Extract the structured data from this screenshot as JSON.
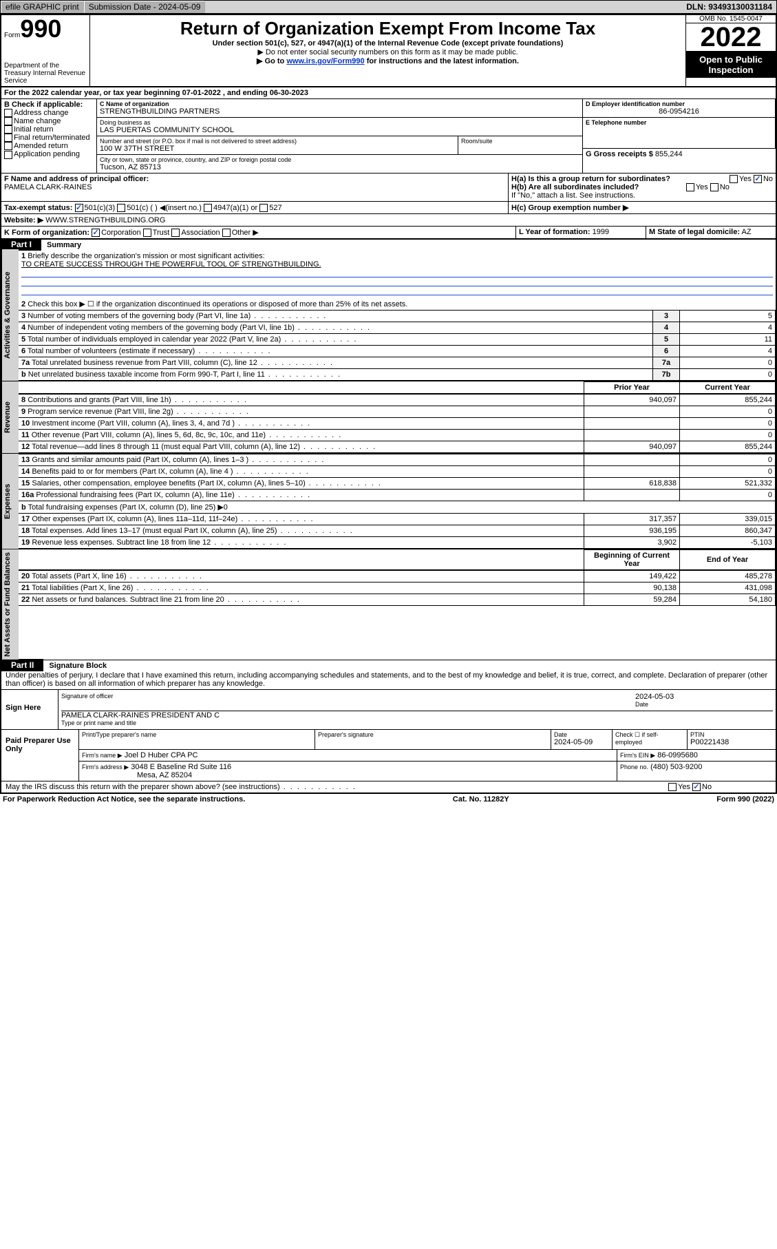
{
  "topbar": {
    "efile": "efile GRAPHIC print",
    "submission": "Submission Date - 2024-05-09",
    "dln": "DLN: 93493130031184"
  },
  "header": {
    "form_prefix": "Form",
    "form_number": "990",
    "dept": "Department of the Treasury Internal Revenue Service",
    "title": "Return of Organization Exempt From Income Tax",
    "subtitle": "Under section 501(c), 527, or 4947(a)(1) of the Internal Revenue Code (except private foundations)",
    "note1": "▶ Do not enter social security numbers on this form as it may be made public.",
    "note2_pre": "▶ Go to ",
    "note2_link": "www.irs.gov/Form990",
    "note2_post": " for instructions and the latest information.",
    "omb": "OMB No. 1545-0047",
    "year": "2022",
    "open": "Open to Public Inspection"
  },
  "A": {
    "text": "For the 2022 calendar year, or tax year beginning 07-01-2022   , and ending 06-30-2023"
  },
  "B": {
    "label": "B Check if applicable:",
    "items": [
      "Address change",
      "Name change",
      "Initial return",
      "Final return/terminated",
      "Amended return",
      "Application pending"
    ]
  },
  "C": {
    "name_label": "C Name of organization",
    "name": "STRENGTHBUILDING PARTNERS",
    "dba_label": "Doing business as",
    "dba": "LAS PUERTAS COMMUNITY SCHOOL",
    "street_label": "Number and street (or P.O. box if mail is not delivered to street address)",
    "room_label": "Room/suite",
    "street": "100 W 37TH STREET",
    "city_label": "City or town, state or province, country, and ZIP or foreign postal code",
    "city": "Tucson, AZ  85713"
  },
  "D": {
    "label": "D Employer identification number",
    "value": "86-0954216"
  },
  "E": {
    "label": "E Telephone number",
    "value": ""
  },
  "G": {
    "label": "G Gross receipts $",
    "value": "855,244"
  },
  "F": {
    "label": "F Name and address of principal officer:",
    "value": "PAMELA CLARK-RAINES"
  },
  "H": {
    "a": "H(a)  Is this a group return for subordinates?",
    "a_yes": "Yes",
    "a_no": "No",
    "b": "H(b)  Are all subordinates included?",
    "b_yes": "Yes",
    "b_no": "No",
    "b_note": "If \"No,\" attach a list. See instructions.",
    "c": "H(c)  Group exemption number ▶"
  },
  "I": {
    "label": "Tax-exempt status:",
    "opts": [
      "501(c)(3)",
      "501(c) (  ) ◀(insert no.)",
      "4947(a)(1) or",
      "527"
    ]
  },
  "J": {
    "label": "Website: ▶",
    "value": "WWW.STRENGTHBUILDING.ORG"
  },
  "K": {
    "label": "K Form of organization:",
    "opts": [
      "Corporation",
      "Trust",
      "Association",
      "Other ▶"
    ]
  },
  "L": {
    "label": "L Year of formation:",
    "value": "1999"
  },
  "M": {
    "label": "M State of legal domicile:",
    "value": "AZ"
  },
  "partI": {
    "label": "Part I",
    "title": "Summary"
  },
  "summary": {
    "q1": "Briefly describe the organization's mission or most significant activities:",
    "q1_ans": "TO CREATE SUCCESS THROUGH THE POWERFUL TOOL OF STRENGTHBUILDING.",
    "q2": "Check this box ▶ ☐  if the organization discontinued its operations or disposed of more than 25% of its net assets.",
    "rows_gov": [
      {
        "n": "3",
        "t": "Number of voting members of the governing body (Part VI, line 1a)",
        "k": "3",
        "v": "5"
      },
      {
        "n": "4",
        "t": "Number of independent voting members of the governing body (Part VI, line 1b)",
        "k": "4",
        "v": "4"
      },
      {
        "n": "5",
        "t": "Total number of individuals employed in calendar year 2022 (Part V, line 2a)",
        "k": "5",
        "v": "11"
      },
      {
        "n": "6",
        "t": "Total number of volunteers (estimate if necessary)",
        "k": "6",
        "v": "4"
      },
      {
        "n": "7a",
        "t": "Total unrelated business revenue from Part VIII, column (C), line 12",
        "k": "7a",
        "v": "0"
      },
      {
        "n": "b",
        "t": "Net unrelated business taxable income from Form 990-T, Part I, line 11",
        "k": "7b",
        "v": "0"
      }
    ],
    "prior_label": "Prior Year",
    "current_label": "Current Year",
    "rows_rev": [
      {
        "n": "8",
        "t": "Contributions and grants (Part VIII, line 1h)",
        "p": "940,097",
        "c": "855,244"
      },
      {
        "n": "9",
        "t": "Program service revenue (Part VIII, line 2g)",
        "p": "",
        "c": "0"
      },
      {
        "n": "10",
        "t": "Investment income (Part VIII, column (A), lines 3, 4, and 7d )",
        "p": "",
        "c": "0"
      },
      {
        "n": "11",
        "t": "Other revenue (Part VIII, column (A), lines 5, 6d, 8c, 9c, 10c, and 11e)",
        "p": "",
        "c": "0"
      },
      {
        "n": "12",
        "t": "Total revenue—add lines 8 through 11 (must equal Part VIII, column (A), line 12)",
        "p": "940,097",
        "c": "855,244"
      }
    ],
    "rows_exp": [
      {
        "n": "13",
        "t": "Grants and similar amounts paid (Part IX, column (A), lines 1–3 )",
        "p": "",
        "c": "0"
      },
      {
        "n": "14",
        "t": "Benefits paid to or for members (Part IX, column (A), line 4 )",
        "p": "",
        "c": "0"
      },
      {
        "n": "15",
        "t": "Salaries, other compensation, employee benefits (Part IX, column (A), lines 5–10)",
        "p": "618,838",
        "c": "521,332"
      },
      {
        "n": "16a",
        "t": "Professional fundraising fees (Part IX, column (A), line 11e)",
        "p": "",
        "c": "0"
      },
      {
        "n": "b",
        "t": "Total fundraising expenses (Part IX, column (D), line 25) ▶0",
        "p": null,
        "c": null
      },
      {
        "n": "17",
        "t": "Other expenses (Part IX, column (A), lines 11a–11d, 11f–24e)",
        "p": "317,357",
        "c": "339,015"
      },
      {
        "n": "18",
        "t": "Total expenses. Add lines 13–17 (must equal Part IX, column (A), line 25)",
        "p": "936,195",
        "c": "860,347"
      },
      {
        "n": "19",
        "t": "Revenue less expenses. Subtract line 18 from line 12",
        "p": "3,902",
        "c": "-5,103"
      }
    ],
    "begin_label": "Beginning of Current Year",
    "end_label": "End of Year",
    "rows_net": [
      {
        "n": "20",
        "t": "Total assets (Part X, line 16)",
        "p": "149,422",
        "c": "485,278"
      },
      {
        "n": "21",
        "t": "Total liabilities (Part X, line 26)",
        "p": "90,138",
        "c": "431,098"
      },
      {
        "n": "22",
        "t": "Net assets or fund balances. Subtract line 21 from line 20",
        "p": "59,284",
        "c": "54,180"
      }
    ],
    "vtabs": {
      "gov": "Activities & Governance",
      "rev": "Revenue",
      "exp": "Expenses",
      "net": "Net Assets or Fund Balances"
    }
  },
  "partII": {
    "label": "Part II",
    "title": "Signature Block"
  },
  "sig": {
    "perjury": "Under penalties of perjury, I declare that I have examined this return, including accompanying schedules and statements, and to the best of my knowledge and belief, it is true, correct, and complete. Declaration of preparer (other than officer) is based on all information of which preparer has any knowledge.",
    "sign_here": "Sign Here",
    "sig_officer": "Signature of officer",
    "date": "Date",
    "date_val": "2024-05-03",
    "name_title": "PAMELA CLARK-RAINES  PRESIDENT AND C",
    "type_name": "Type or print name and title",
    "paid": "Paid Preparer Use Only",
    "prep_name_label": "Print/Type preparer's name",
    "prep_sig_label": "Preparer's signature",
    "prep_date_label": "Date",
    "prep_date": "2024-05-09",
    "check_if": "Check ☐ if self-employed",
    "ptin_label": "PTIN",
    "ptin": "P00221438",
    "firm_name_label": "Firm's name    ▶",
    "firm_name": "Joel D Huber CPA PC",
    "firm_ein_label": "Firm's EIN ▶",
    "firm_ein": "86-0995680",
    "firm_addr_label": "Firm's address ▶",
    "firm_addr": "3048 E Baseline Rd Suite 116",
    "firm_city": "Mesa, AZ  85204",
    "phone_label": "Phone no.",
    "phone": "(480) 503-9200",
    "discuss": "May the IRS discuss this return with the preparer shown above? (see instructions)",
    "yes": "Yes",
    "no": "No"
  },
  "footer": {
    "paperwork": "For Paperwork Reduction Act Notice, see the separate instructions.",
    "cat": "Cat. No. 11282Y",
    "form": "Form 990 (2022)"
  }
}
